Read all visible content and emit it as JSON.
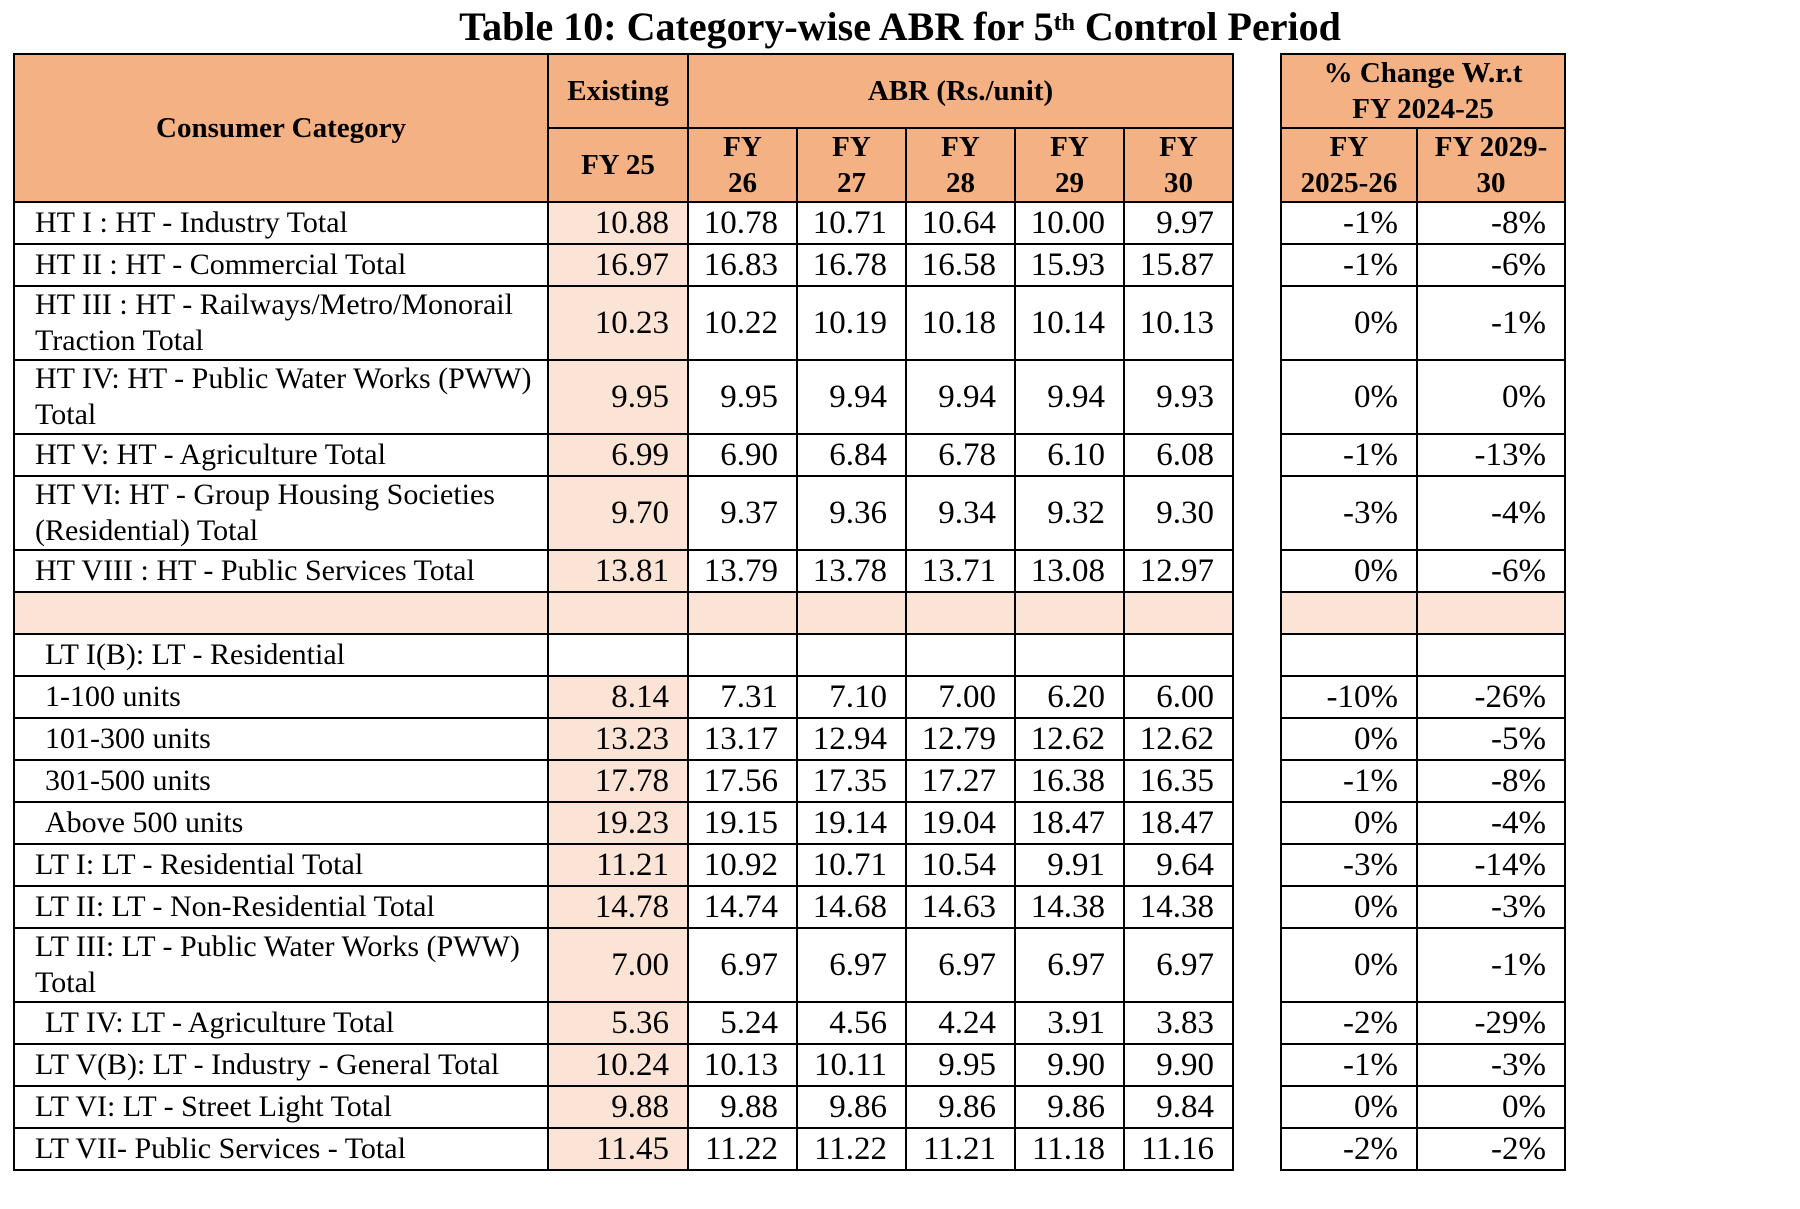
{
  "title": {
    "main": "Table 10: Category-wise ABR for 5",
    "sup": "th",
    "rest": " Control Period"
  },
  "header": {
    "category": "Consumer Category",
    "existing": "Existing",
    "abr": "ABR (Rs./unit)",
    "pct_change": "% Change  W.r.t FY 2024-25",
    "fy25": "FY 25",
    "fy26": "FY 26",
    "fy27": "FY 27",
    "fy28": "FY 28",
    "fy29": "FY 29",
    "fy30": "FY 30",
    "pct_fy26": "FY 2025-26",
    "pct_fy30": "FY 2029-30"
  },
  "rows": [
    {
      "cat": "HT I : HT - Industry Total",
      "v": [
        "10.88",
        "10.78",
        "10.71",
        "10.64",
        "10.00",
        "9.97"
      ],
      "p": [
        "-1%",
        "-8%"
      ]
    },
    {
      "cat": "HT II : HT - Commercial Total",
      "v": [
        "16.97",
        "16.83",
        "16.78",
        "16.58",
        "15.93",
        "15.87"
      ],
      "p": [
        "-1%",
        "-6%"
      ]
    },
    {
      "cat": "HT III : HT - Railways/Metro/Monorail Traction Total",
      "v": [
        "10.23",
        "10.22",
        "10.19",
        "10.18",
        "10.14",
        "10.13"
      ],
      "p": [
        "0%",
        "-1%"
      ]
    },
    {
      "cat": "HT IV: HT - Public Water Works (PWW) Total",
      "v": [
        "9.95",
        "9.95",
        "9.94",
        "9.94",
        "9.94",
        "9.93"
      ],
      "p": [
        "0%",
        "0%"
      ]
    },
    {
      "cat": "HT V: HT - Agriculture Total",
      "v": [
        "6.99",
        "6.90",
        "6.84",
        "6.78",
        "6.10",
        "6.08"
      ],
      "p": [
        "-1%",
        "-13%"
      ]
    },
    {
      "cat": "HT VI: HT - Group Housing Societies (Residential) Total",
      "v": [
        "9.70",
        "9.37",
        "9.36",
        "9.34",
        "9.32",
        "9.30"
      ],
      "p": [
        "-3%",
        "-4%"
      ]
    },
    {
      "cat": "HT VIII : HT - Public Services Total",
      "v": [
        "13.81",
        "13.79",
        "13.78",
        "13.71",
        "13.08",
        "12.97"
      ],
      "p": [
        "0%",
        "-6%"
      ]
    },
    {
      "cat": "LT I(B): LT - Residential"
    },
    {
      "cat": "1-100 units",
      "v": [
        "8.14",
        "7.31",
        "7.10",
        "7.00",
        "6.20",
        "6.00"
      ],
      "p": [
        "-10%",
        "-26%"
      ]
    },
    {
      "cat": "101-300 units",
      "v": [
        "13.23",
        "13.17",
        "12.94",
        "12.79",
        "12.62",
        "12.62"
      ],
      "p": [
        "0%",
        "-5%"
      ]
    },
    {
      "cat": "301-500 units",
      "v": [
        "17.78",
        "17.56",
        "17.35",
        "17.27",
        "16.38",
        "16.35"
      ],
      "p": [
        "-1%",
        "-8%"
      ]
    },
    {
      "cat": "Above 500 units",
      "v": [
        "19.23",
        "19.15",
        "19.14",
        "19.04",
        "18.47",
        "18.47"
      ],
      "p": [
        "0%",
        "-4%"
      ]
    },
    {
      "cat": "LT I: LT - Residential Total",
      "v": [
        "11.21",
        "10.92",
        "10.71",
        "10.54",
        "9.91",
        "9.64"
      ],
      "p": [
        "-3%",
        "-14%"
      ]
    },
    {
      "cat": "LT II: LT - Non-Residential Total",
      "v": [
        "14.78",
        "14.74",
        "14.68",
        "14.63",
        "14.38",
        "14.38"
      ],
      "p": [
        "0%",
        "-3%"
      ]
    },
    {
      "cat": "LT III: LT - Public Water Works (PWW) Total",
      "v": [
        "7.00",
        "6.97",
        "6.97",
        "6.97",
        "6.97",
        "6.97"
      ],
      "p": [
        "0%",
        "-1%"
      ]
    },
    {
      "cat": "LT IV: LT - Agriculture Total",
      "v": [
        "5.36",
        "5.24",
        "4.56",
        "4.24",
        "3.91",
        "3.83"
      ],
      "p": [
        "-2%",
        "-29%"
      ]
    },
    {
      "cat": "LT V(B): LT - Industry - General Total",
      "v": [
        "10.24",
        "10.13",
        "10.11",
        "9.95",
        "9.90",
        "9.90"
      ],
      "p": [
        "-1%",
        "-3%"
      ]
    },
    {
      "cat": "LT VI: LT - Street Light Total",
      "v": [
        "9.88",
        "9.88",
        "9.86",
        "9.86",
        "9.86",
        "9.84"
      ],
      "p": [
        "0%",
        "0%"
      ]
    },
    {
      "cat": "LT VII- Public Services - Total",
      "v": [
        "11.45",
        "11.22",
        "11.22",
        "11.21",
        "11.18",
        "11.16"
      ],
      "p": [
        "-2%",
        "-2%"
      ]
    }
  ],
  "colors": {
    "header_bg": "#f4b183",
    "existing_bg": "#fbe4d5"
  }
}
